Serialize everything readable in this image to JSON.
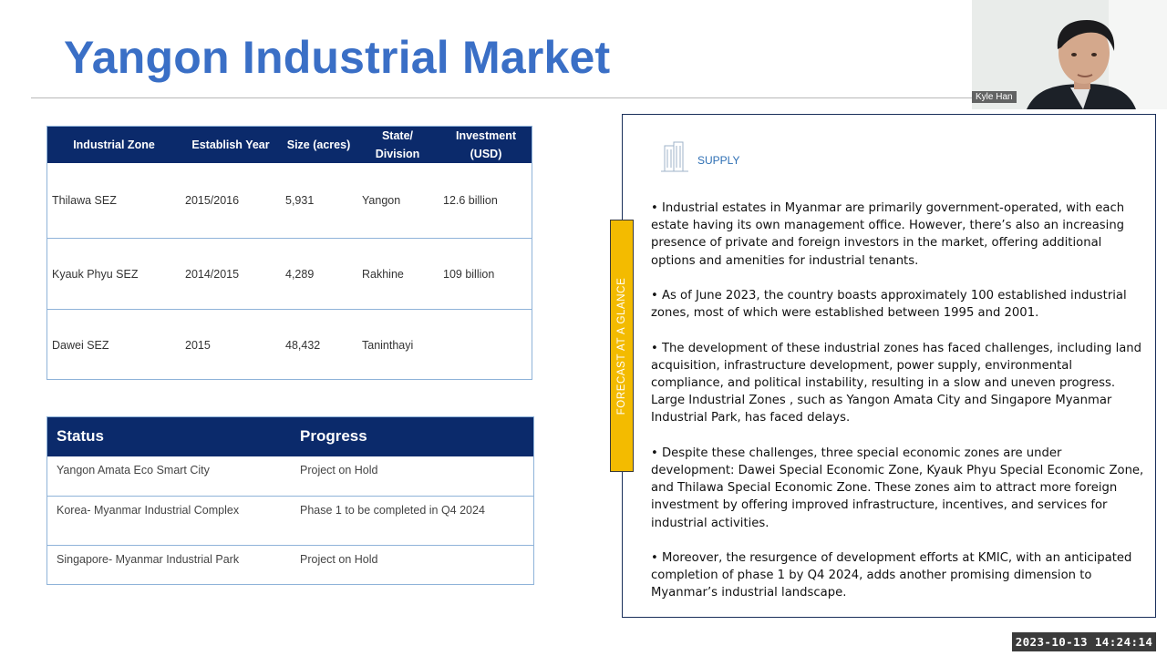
{
  "slide": {
    "title": "Yangon Industrial Market"
  },
  "zones_table": {
    "headers": {
      "zone": "Industrial Zone",
      "year": "Establish Year",
      "size": "Size (acres)",
      "state_line1": "State/",
      "state_line2": "Division",
      "invest_line1": "Investment",
      "invest_line2": "(USD)"
    },
    "rows": [
      {
        "zone": "Thilawa SEZ",
        "year": "2015/2016",
        "size": "5,931",
        "state": "Yangon",
        "investment": "12.6 billion"
      },
      {
        "zone": "Kyauk Phyu SEZ",
        "year": "2014/2015",
        "size": "4,289",
        "state": "Rakhine",
        "investment": "109 billion"
      },
      {
        "zone": "Dawei SEZ",
        "year": "2015",
        "size": "48,432",
        "state": "Taninthayi",
        "investment": ""
      }
    ]
  },
  "status_table": {
    "headers": {
      "status": "Status",
      "progress": "Progress"
    },
    "rows": [
      {
        "status": "Yangon Amata Eco Smart City",
        "progress": "Project on Hold"
      },
      {
        "status": "Korea- Myanmar Industrial Complex",
        "progress": "Phase 1 to be completed in Q4 2024"
      },
      {
        "status": "Singapore- Myanmar Industrial Park",
        "progress": "Project on Hold"
      }
    ]
  },
  "side_tab": {
    "label": "FORECAST AT A GLANCE",
    "color": "#f3bb00"
  },
  "supply_panel": {
    "label": "SUPPLY",
    "icon": "buildings-icon",
    "bullets": [
      "•  Industrial estates in Myanmar are primarily government-operated, with each estate having its own management office. However, there’s also an increasing presence of private and foreign investors in the market, offering additional options and amenities for industrial tenants.",
      "•  As of June 2023, the country boasts approximately 100 established industrial zones, most of which were established between 1995 and 2001.",
      "•  The development of these industrial zones has faced challenges, including land acquisition, infrastructure development, power supply, environmental compliance, and political instability, resulting in a slow and uneven progress. Large Industrial Zones , such as Yangon Amata City and Singapore Myanmar Industrial Park, has faced delays.",
      "•  Despite these challenges, three special economic zones are under development: Dawei Special Economic Zone, Kyauk Phyu Special Economic Zone, and Thilawa Special Economic Zone. These zones aim to attract more foreign investment by offering improved infrastructure, incentives, and services for industrial activities.",
      "•  Moreover, the resurgence of development efforts at KMIC, with an anticipated completion of phase 1 by Q4 2024, adds another promising dimension to Myanmar’s industrial landscape."
    ]
  },
  "participant": {
    "name": "Kyle Han"
  },
  "timestamp": "2023-10-13  14:24:14",
  "colors": {
    "title": "#3a6fc6",
    "table_header": "#0b2a6b",
    "accent": "#f3bb00"
  }
}
